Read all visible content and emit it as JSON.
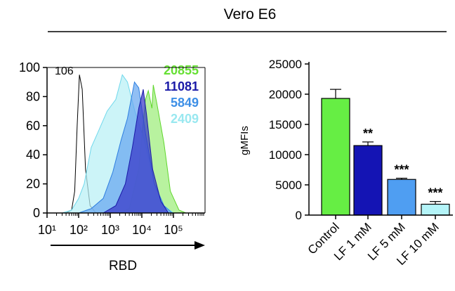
{
  "header": {
    "title": "Vero E6"
  },
  "chart_data": [
    {
      "type": "area",
      "xlabel": "RBD",
      "ylabel": "",
      "xscale": "log",
      "xlim": [
        10,
        1000000
      ],
      "ylim": [
        0,
        100
      ],
      "x_tick_labels": [
        "10¹",
        "10²",
        "10³",
        "10⁴",
        "10⁵"
      ],
      "y_tick_labels": [
        "100",
        "80",
        "60",
        "40",
        "20",
        "0"
      ],
      "annotations": [
        {
          "text": "106",
          "color": "#000000"
        },
        {
          "text": "20855",
          "color": "#66e033"
        },
        {
          "text": "11081",
          "color": "#1a1aa8"
        },
        {
          "text": "5849",
          "color": "#3d8fe6"
        },
        {
          "text": "2409",
          "color": "#99e8f0"
        }
      ],
      "series": [
        {
          "color": "#ffffff",
          "stroke": "#000000",
          "points": [
            [
              40,
              0
            ],
            [
              60,
              2
            ],
            [
              75,
              15
            ],
            [
              90,
              60
            ],
            [
              106,
              95
            ],
            [
              130,
              85
            ],
            [
              165,
              30
            ],
            [
              230,
              5
            ],
            [
              350,
              0
            ]
          ]
        },
        {
          "color": "#9ded7a",
          "stroke": "#5fd62c",
          "points": [
            [
              2000,
              0
            ],
            [
              4000,
              3
            ],
            [
              8000,
              30
            ],
            [
              13000,
              78
            ],
            [
              16000,
              84
            ],
            [
              20855,
              72
            ],
            [
              23000,
              88
            ],
            [
              30000,
              75
            ],
            [
              50000,
              48
            ],
            [
              80000,
              15
            ],
            [
              150000,
              2
            ],
            [
              250000,
              0
            ]
          ]
        },
        {
          "color": "#b8f0f5",
          "stroke": "#6fd8ec",
          "points": [
            [
              30,
              0
            ],
            [
              60,
              2
            ],
            [
              100,
              10
            ],
            [
              150,
              20
            ],
            [
              250,
              45
            ],
            [
              400,
              55
            ],
            [
              800,
              70
            ],
            [
              1500,
              78
            ],
            [
              2409,
              95
            ],
            [
              3500,
              90
            ],
            [
              6000,
              70
            ],
            [
              12000,
              50
            ],
            [
              25000,
              20
            ],
            [
              50000,
              5
            ],
            [
              100000,
              0
            ]
          ]
        },
        {
          "color": "#66a6f0",
          "stroke": "#2e7ee0",
          "points": [
            [
              100,
              0
            ],
            [
              250,
              3
            ],
            [
              600,
              10
            ],
            [
              1200,
              28
            ],
            [
              2200,
              50
            ],
            [
              3500,
              65
            ],
            [
              5849,
              90
            ],
            [
              8000,
              86
            ],
            [
              13000,
              55
            ],
            [
              25000,
              20
            ],
            [
              50000,
              5
            ],
            [
              90000,
              0
            ]
          ]
        },
        {
          "color": "#3838c8",
          "stroke": "#1a1aa8",
          "points": [
            [
              600,
              0
            ],
            [
              1500,
              5
            ],
            [
              3000,
              20
            ],
            [
              5000,
              45
            ],
            [
              8000,
              72
            ],
            [
              11081,
              85
            ],
            [
              14000,
              68
            ],
            [
              22000,
              30
            ],
            [
              40000,
              8
            ],
            [
              70000,
              0
            ]
          ]
        }
      ]
    },
    {
      "type": "bar",
      "ylabel": "gMFIs",
      "ylim": [
        0,
        25000
      ],
      "y_tick_labels": [
        "25000",
        "20000",
        "15000",
        "10000",
        "5000",
        "0"
      ],
      "categories": [
        "Control",
        "LF 1 mM",
        "LF 5 mM",
        "LF 10 mM"
      ],
      "values": [
        19300,
        11500,
        5900,
        1800
      ],
      "errors": [
        1500,
        600,
        200,
        450
      ],
      "colors": [
        "#66ee44",
        "#1414b4",
        "#4f9ef2",
        "#b4f4f8"
      ],
      "significance": [
        "",
        "**",
        "***",
        "***"
      ]
    }
  ]
}
